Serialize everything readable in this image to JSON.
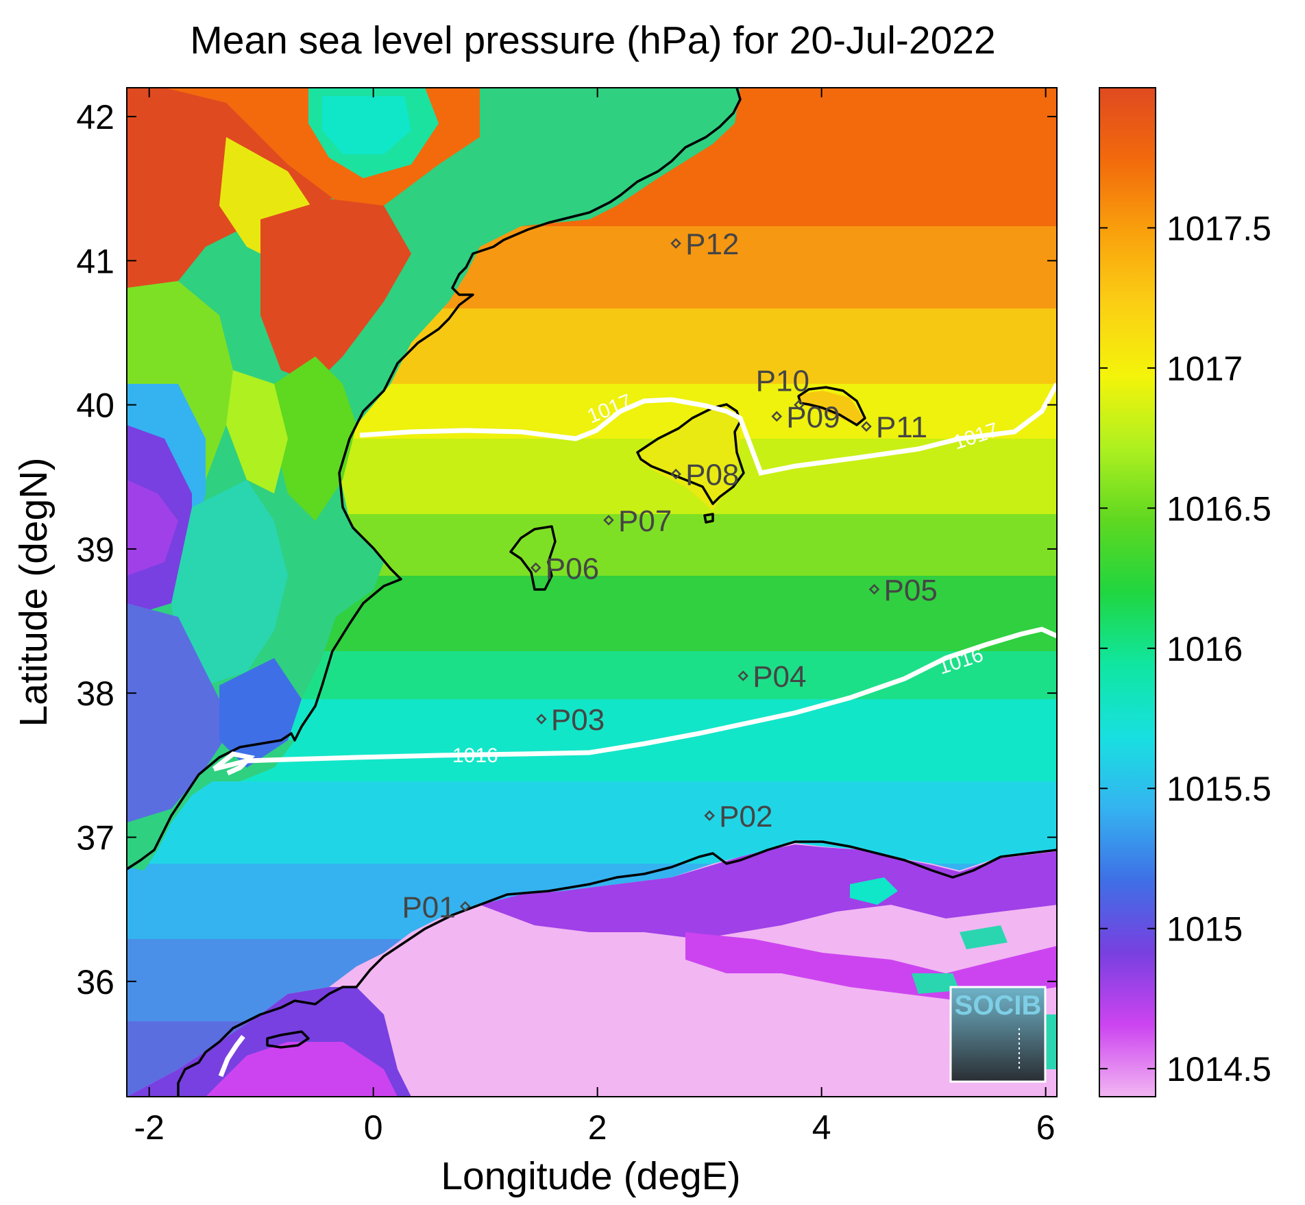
{
  "chart_data": {
    "type": "heatmap",
    "title": "Mean sea level pressure (hPa) for 20-Jul-2022",
    "xlabel": "Longitude (degE)",
    "ylabel": "Latitude (degN)",
    "xlim": [
      -2.2,
      6.1
    ],
    "ylim": [
      35.2,
      42.2
    ],
    "x_ticks": [
      -2,
      0,
      2,
      4,
      6
    ],
    "y_ticks": [
      36,
      37,
      38,
      39,
      40,
      41,
      42
    ],
    "colorbar": {
      "range": [
        1014.4,
        1018.0
      ],
      "ticks": [
        1014.5,
        1015,
        1015.5,
        1016,
        1016.5,
        1017,
        1017.5
      ],
      "colormap": [
        "#f2b6f2",
        "#cc44f0",
        "#7840e0",
        "#3f6fe6",
        "#34b3f0",
        "#18e0e0",
        "#10e6a0",
        "#20d640",
        "#5fd820",
        "#aef020",
        "#f4f40a",
        "#fbcf14",
        "#f9a10c",
        "#f26a0c",
        "#e04a20"
      ]
    },
    "contours": [
      {
        "label": "1017",
        "level": 1017
      },
      {
        "label": "1016",
        "level": 1016
      }
    ],
    "stations": [
      {
        "name": "P01",
        "lon": 0.82,
        "lat": 36.52
      },
      {
        "name": "P02",
        "lon": 3.0,
        "lat": 37.15
      },
      {
        "name": "P03",
        "lon": 1.5,
        "lat": 37.82
      },
      {
        "name": "P04",
        "lon": 3.3,
        "lat": 38.12
      },
      {
        "name": "P05",
        "lon": 4.47,
        "lat": 38.72
      },
      {
        "name": "P06",
        "lon": 1.45,
        "lat": 38.87
      },
      {
        "name": "P07",
        "lon": 2.1,
        "lat": 39.2
      },
      {
        "name": "P08",
        "lon": 2.7,
        "lat": 39.52
      },
      {
        "name": "P09",
        "lon": 3.6,
        "lat": 39.92
      },
      {
        "name": "P10",
        "lon": 3.8,
        "lat": 40.0
      },
      {
        "name": "P11",
        "lon": 4.4,
        "lat": 39.85
      },
      {
        "name": "P12",
        "lon": 2.7,
        "lat": 41.12
      }
    ],
    "grid": false,
    "legend": "colorbar right"
  },
  "logo": {
    "text": "SOCIB",
    "colors": {
      "text": "#7ecfe6",
      "bg_top": "#6fb3c8",
      "bg_bottom": "#2a2e33",
      "border": "#ffffff"
    }
  }
}
